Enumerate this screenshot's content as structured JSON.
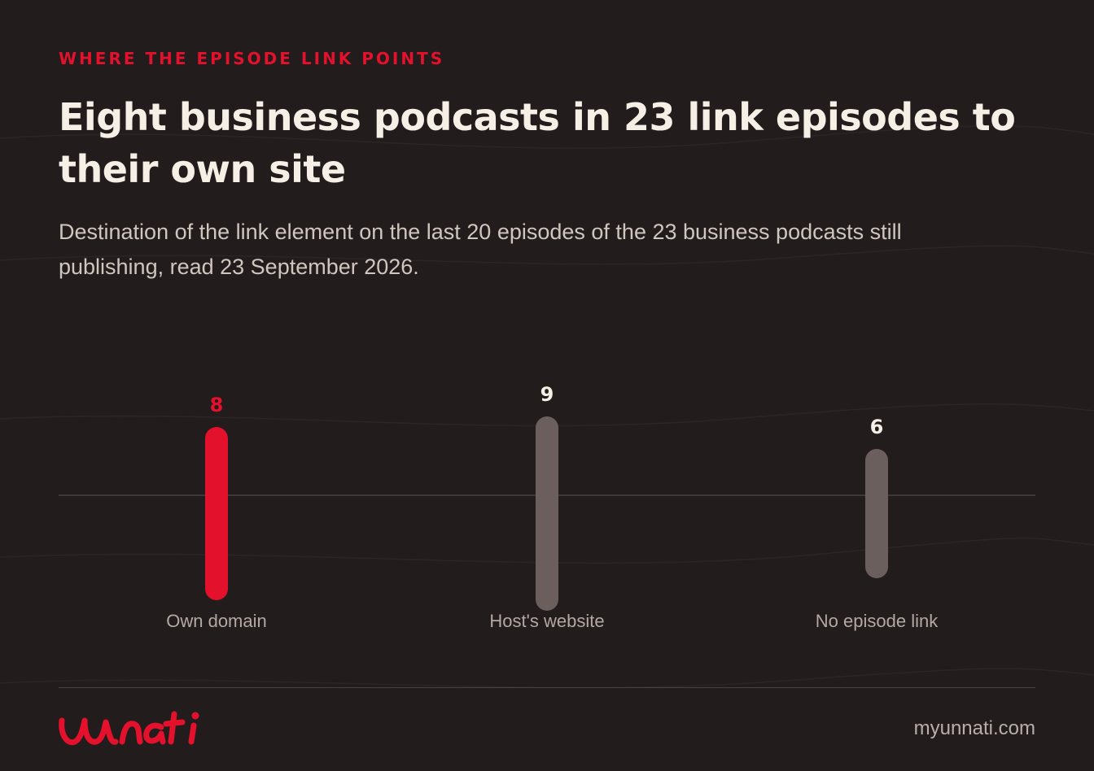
{
  "eyebrow": "WHERE THE EPISODE LINK POINTS",
  "title": "Eight business podcasts in 23 link episodes to their own site",
  "subtitle": "Destination of the link element on the last 20 episodes of the 23 business podcasts still publishing, read 23 September 2026.",
  "footer": {
    "logo_text": "unnati",
    "site": "myunnati.com"
  },
  "colors": {
    "accent": "#e3112c",
    "neutral_bar": "#6b5f5d",
    "background": "#231c1d",
    "text": "#f6efe6"
  },
  "chart_data": {
    "type": "bar",
    "categories": [
      "Own domain",
      "Host's website",
      "No episode link"
    ],
    "values": [
      8,
      9,
      6
    ],
    "highlight_index": 0,
    "bar_colors": [
      "#e3112c",
      "#6b5f5d",
      "#6b5f5d"
    ],
    "label_colors": [
      "#e3112c",
      "#f6efe6",
      "#f6efe6"
    ],
    "grid": false
  }
}
